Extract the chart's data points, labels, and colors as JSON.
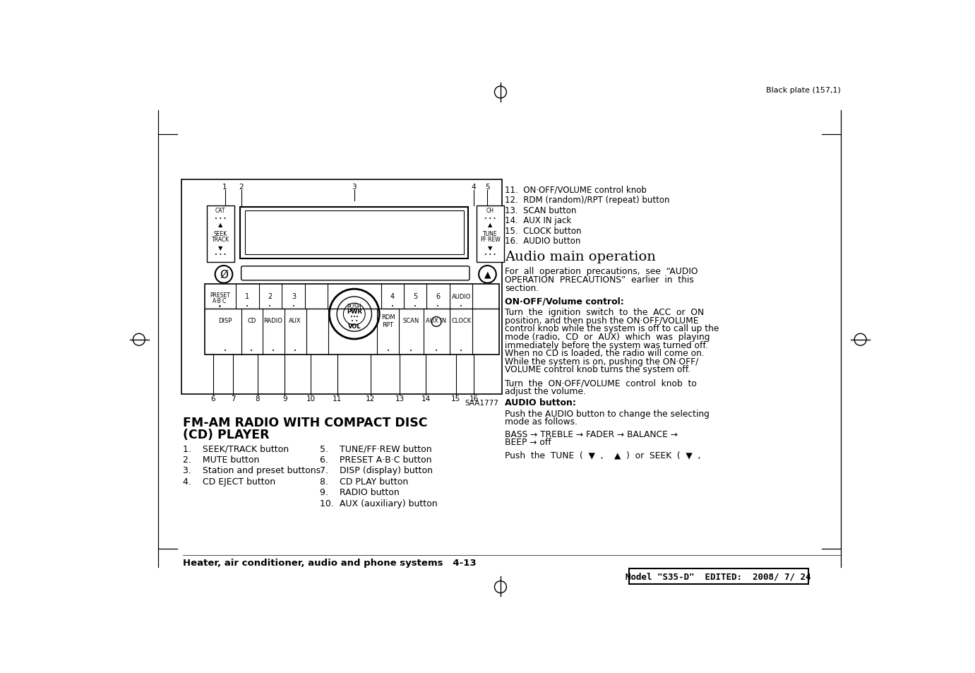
{
  "bg_color": "#ffffff",
  "top_text": "Black plate (157,1)",
  "bottom_model_text": "Model \"S35-D\"  EDITED:  2008/ 7/ 24",
  "right_list": [
    "11.  ON·OFF/VOLUME control knob",
    "12.  RDM (random)/RPT (repeat) button",
    "13.  SCAN button",
    "14.  AUX IN jack",
    "15.  CLOCK button",
    "16.  AUDIO button"
  ],
  "section_title": "Audio main operation",
  "subsection1_title": "ON·OFF/Volume control:",
  "subsection2_title": "AUDIO button:",
  "footer_text": "Heater, air conditioner, audio and phone systems   4-13",
  "saa_text": "SAA1777",
  "caption_title_line1": "FM-AM RADIO WITH COMPACT DISC",
  "caption_title_line2": "(CD) PLAYER",
  "caption_left": [
    "1.    SEEK/TRACK button",
    "2.    MUTE button",
    "3.    Station and preset buttons",
    "4.    CD EJECT button"
  ],
  "caption_right": [
    "5.    TUNE/FF·REW button",
    "6.    PRESET A·B·C button",
    "7.    DISP (display) button",
    "8.    CD PLAY button",
    "9.    RADIO button",
    "10.  AUX (auxiliary) button"
  ]
}
